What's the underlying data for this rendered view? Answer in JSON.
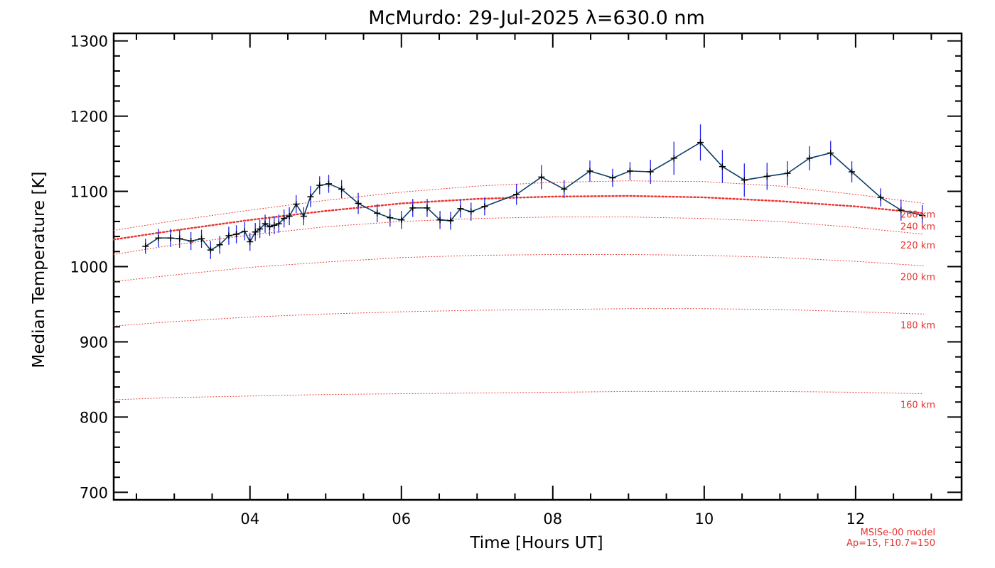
{
  "chart_data": {
    "type": "line",
    "title": "McMurdo: 29-Jul-2025 λ=630.0 nm",
    "xlabel": "Time [Hours UT]",
    "ylabel": "Median Temperature [K]",
    "xlim": [
      2.2,
      13.4
    ],
    "ylim": [
      690,
      1310
    ],
    "x_ticks": [
      4,
      6,
      8,
      10,
      12
    ],
    "x_tick_labels": [
      "04",
      "06",
      "08",
      "10",
      "12"
    ],
    "y_ticks": [
      700,
      800,
      900,
      1000,
      1100,
      1200,
      1300
    ],
    "y_tick_labels": [
      "700",
      "800",
      "900",
      "1000",
      "1100",
      "1200",
      "1300"
    ],
    "grid": false,
    "series": [
      {
        "style": "black line with + markers and blue vertical error bars",
        "x": [
          2.62,
          2.79,
          2.95,
          3.07,
          3.22,
          3.36,
          3.48,
          3.6,
          3.72,
          3.82,
          3.93,
          4.0,
          4.07,
          4.13,
          4.2,
          4.26,
          4.32,
          4.38,
          4.45,
          4.52,
          4.61,
          4.71,
          4.8,
          4.92,
          5.04,
          5.21,
          5.43,
          5.68,
          5.85,
          6.0,
          6.15,
          6.34,
          6.51,
          6.65,
          6.78,
          6.92,
          7.1,
          7.52,
          7.85,
          8.15,
          8.49,
          8.79,
          9.02,
          9.29,
          9.6,
          9.95,
          10.24,
          10.53,
          10.83,
          11.1,
          11.39,
          11.67,
          11.95,
          12.33,
          12.6,
          12.88
        ],
        "values": [
          1027,
          1038,
          1038,
          1037,
          1034,
          1037,
          1022,
          1029,
          1041,
          1043,
          1047,
          1033,
          1046,
          1050,
          1057,
          1053,
          1055,
          1057,
          1064,
          1067,
          1083,
          1067,
          1093,
          1108,
          1110,
          1103,
          1084,
          1071,
          1065,
          1062,
          1078,
          1078,
          1062,
          1061,
          1077,
          1073,
          1080,
          1096,
          1119,
          1103,
          1127,
          1118,
          1127,
          1126,
          1144,
          1165,
          1133,
          1115,
          1120,
          1124,
          1144,
          1151,
          1126,
          1092,
          1075,
          1068
        ],
        "errors": [
          10,
          12,
          12,
          12,
          12,
          12,
          12,
          12,
          12,
          12,
          12,
          12,
          12,
          12,
          12,
          12,
          12,
          12,
          12,
          12,
          12,
          12,
          14,
          12,
          12,
          12,
          14,
          12,
          12,
          12,
          12,
          12,
          12,
          12,
          12,
          12,
          12,
          14,
          16,
          12,
          14,
          12,
          12,
          16,
          22,
          24,
          22,
          22,
          18,
          16,
          16,
          16,
          14,
          12,
          14,
          14
        ]
      }
    ],
    "model_curves": [
      {
        "label": "260 km",
        "x": [
          2.2,
          3,
          4,
          5,
          6,
          7,
          8,
          9,
          10,
          11,
          12,
          12.9
        ],
        "values": [
          1048,
          1061,
          1075,
          1088,
          1099,
          1107,
          1112,
          1114,
          1113,
          1107,
          1096,
          1084
        ]
      },
      {
        "label": "240 km",
        "x": [
          2.2,
          3,
          4,
          5,
          6,
          7,
          8,
          9,
          10,
          11,
          12,
          12.9
        ],
        "values": [
          1036,
          1048,
          1062,
          1074,
          1084,
          1090,
          1093,
          1094,
          1092,
          1087,
          1080,
          1071
        ]
      },
      {
        "label": "220 km",
        "x": [
          2.2,
          3,
          4,
          5,
          6,
          7,
          8,
          9,
          10,
          11,
          12,
          12.9
        ],
        "values": [
          1016,
          1029,
          1042,
          1053,
          1060,
          1064,
          1066,
          1066,
          1064,
          1060,
          1052,
          1043
        ]
      },
      {
        "label": "200 km",
        "x": [
          2.2,
          3,
          4,
          5,
          6,
          7,
          8,
          9,
          10,
          11,
          12,
          12.9
        ],
        "values": [
          980,
          989,
          999,
          1006,
          1012,
          1015,
          1016,
          1016,
          1015,
          1012,
          1007,
          1001
        ]
      },
      {
        "label": "180 km",
        "x": [
          2.2,
          3,
          4,
          5,
          6,
          7,
          8,
          9,
          10,
          11,
          12,
          12.9
        ],
        "values": [
          921,
          927,
          933,
          937,
          940,
          942,
          943,
          944,
          944,
          943,
          940,
          937
        ]
      },
      {
        "label": "160 km",
        "x": [
          2.2,
          3,
          4,
          5,
          6,
          7,
          8,
          9,
          10,
          11,
          12,
          12.9
        ],
        "values": [
          823,
          826,
          828,
          830,
          831,
          832,
          833,
          834,
          834,
          834,
          833,
          831
        ]
      }
    ],
    "model_note": [
      "MSISe-00 model",
      "Ap=15, F10.7=150"
    ],
    "colors": {
      "line": "#000000",
      "line_alt": "#0b3f6b",
      "error_bar": "#2020e8",
      "model": "#e8332f",
      "axis": "#000000"
    }
  }
}
